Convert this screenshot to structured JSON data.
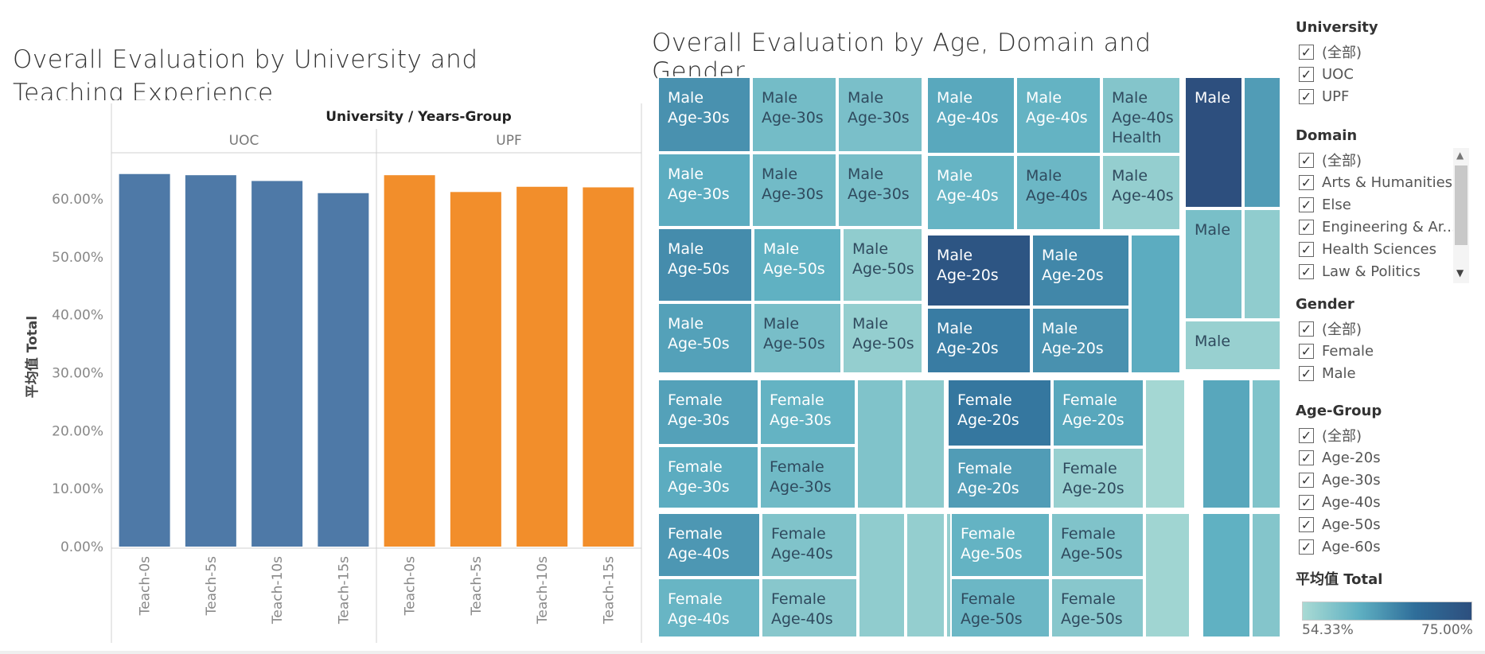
{
  "titles": {
    "left": "Overall Evaluation by University and Teaching Experience",
    "right": "Overall Evaluation by Age, Domain and Gender"
  },
  "chart_data": [
    {
      "type": "bar",
      "title": "Overall Evaluation by University and Teaching Experience",
      "column_header_title": "University / Years-Group",
      "facets": [
        "UOC",
        "UPF"
      ],
      "categories": [
        "Teach-0s",
        "Teach-5s",
        "Teach-10s",
        "Teach-15s"
      ],
      "series": [
        {
          "name": "UOC",
          "values": [
            64.3,
            64.1,
            63.1,
            61.0
          ],
          "color": "#4e79a7"
        },
        {
          "name": "UPF",
          "values": [
            64.1,
            61.2,
            62.1,
            62.0
          ],
          "color": "#f28e2b"
        }
      ],
      "ylabel": "平均值 Total",
      "yticks": [
        "0.00%",
        "10.00%",
        "20.00%",
        "30.00%",
        "40.00%",
        "50.00%",
        "60.00%"
      ],
      "ylim": [
        0,
        65.5
      ],
      "grid": false
    },
    {
      "type": "heatmap",
      "title": "Overall Evaluation by Age, Domain and Gender",
      "cells": [
        {
          "t1": "Male",
          "t2": "Age-30s",
          "t3": "",
          "v": 66.5
        },
        {
          "t1": "Male",
          "t2": "Age-30s",
          "t3": "",
          "v": 61.0
        },
        {
          "t1": "Male",
          "t2": "Age-30s",
          "t3": "",
          "v": 60.2
        },
        {
          "t1": "Male",
          "t2": "Age-30s",
          "t3": "",
          "v": 64.0
        },
        {
          "t1": "Male",
          "t2": "Age-30s",
          "t3": "",
          "v": 61.2
        },
        {
          "t1": "Male",
          "t2": "Age-30s",
          "t3": "",
          "v": 60.5
        },
        {
          "t1": "Male",
          "t2": "Age-40s",
          "t3": "",
          "v": 64.4
        },
        {
          "t1": "Male",
          "t2": "Age-40s",
          "t3": "",
          "v": 63.0
        },
        {
          "t1": "Male",
          "t2": "Age-40s",
          "t3": "Health",
          "v": 59.0
        },
        {
          "t1": "Male",
          "t2": "Age-40s",
          "t3": "",
          "v": 62.8
        },
        {
          "t1": "Male",
          "t2": "Age-40s",
          "t3": "",
          "v": 62.0
        },
        {
          "t1": "Male",
          "t2": "Age-40s",
          "t3": "",
          "v": 57.0
        },
        {
          "t1": "Male",
          "t2": "",
          "t3": "",
          "v": 75.0
        },
        {
          "t1": "",
          "t2": "",
          "t3": "",
          "v": 65.5
        },
        {
          "t1": "Male",
          "t2": "",
          "t3": "",
          "v": 60.4
        },
        {
          "t1": "",
          "t2": "",
          "t3": "",
          "v": 57.5
        },
        {
          "t1": "Male",
          "t2": "",
          "t3": "",
          "v": 56.5
        },
        {
          "t1": "Male",
          "t2": "Age-50s",
          "t3": "",
          "v": 67.0
        },
        {
          "t1": "Male",
          "t2": "Age-50s",
          "t3": "",
          "v": 63.5
        },
        {
          "t1": "Male",
          "t2": "Age-50s",
          "t3": "",
          "v": 57.5
        },
        {
          "t1": "Male",
          "t2": "Age-50s",
          "t3": "",
          "v": 65.0
        },
        {
          "t1": "Male",
          "t2": "Age-50s",
          "t3": "",
          "v": 60.5
        },
        {
          "t1": "Male",
          "t2": "Age-50s",
          "t3": "",
          "v": 57.0
        },
        {
          "t1": "Male",
          "t2": "Age-20s",
          "t3": "",
          "v": 74.0
        },
        {
          "t1": "Male",
          "t2": "Age-20s",
          "t3": "",
          "v": 67.5
        },
        {
          "t1": "",
          "t2": "",
          "t3": "",
          "v": 64.0
        },
        {
          "t1": "Male",
          "t2": "Age-20s",
          "t3": "",
          "v": 68.5
        },
        {
          "t1": "Male",
          "t2": "Age-20s",
          "t3": "",
          "v": 66.5
        },
        {
          "t1": "Female",
          "t2": "Age-30s",
          "t3": "",
          "v": 65.0
        },
        {
          "t1": "Female",
          "t2": "Age-30s",
          "t3": "",
          "v": 63.0
        },
        {
          "t1": "",
          "t2": "",
          "t3": "",
          "v": 59.5
        },
        {
          "t1": "",
          "t2": "",
          "t3": "",
          "v": 57.8
        },
        {
          "t1": "Female",
          "t2": "Age-30s",
          "t3": "",
          "v": 64.0
        },
        {
          "t1": "Female",
          "t2": "Age-30s",
          "t3": "",
          "v": 61.5
        },
        {
          "t1": "Female",
          "t2": "Age-20s",
          "t3": "",
          "v": 69.0
        },
        {
          "t1": "Female",
          "t2": "Age-20s",
          "t3": "",
          "v": 64.5
        },
        {
          "t1": "",
          "t2": "",
          "t3": "",
          "v": 55.0
        },
        {
          "t1": "Female",
          "t2": "Age-20s",
          "t3": "",
          "v": 65.5
        },
        {
          "t1": "Female",
          "t2": "Age-20s",
          "t3": "",
          "v": 56.5
        },
        {
          "t1": "",
          "t2": "",
          "t3": "",
          "v": 64.5
        },
        {
          "t1": "",
          "t2": "",
          "t3": "",
          "v": 59.5
        },
        {
          "t1": "Female",
          "t2": "Age-40s",
          "t3": "",
          "v": 66.0
        },
        {
          "t1": "Female",
          "t2": "Age-40s",
          "t3": "",
          "v": 59.5
        },
        {
          "t1": "",
          "t2": "",
          "t3": "",
          "v": 57.5
        },
        {
          "t1": "",
          "t2": "",
          "t3": "",
          "v": 57.0
        },
        {
          "t1": "Female",
          "t2": "Age-40s",
          "t3": "",
          "v": 62.5
        },
        {
          "t1": "Female",
          "t2": "Age-40s",
          "t3": "",
          "v": 58.5
        },
        {
          "t1": "Female",
          "t2": "Age-50s",
          "t3": "",
          "v": 63.0
        },
        {
          "t1": "Female",
          "t2": "Age-50s",
          "t3": "",
          "v": 59.5
        },
        {
          "t1": "",
          "t2": "",
          "t3": "",
          "v": 55.5
        },
        {
          "t1": "Female",
          "t2": "Age-50s",
          "t3": "",
          "v": 62.0
        },
        {
          "t1": "Female",
          "t2": "Age-50s",
          "t3": "",
          "v": 58.5
        },
        {
          "t1": "",
          "t2": "",
          "t3": "",
          "v": 63.5
        },
        {
          "t1": "",
          "t2": "",
          "t3": "",
          "v": 59.0
        }
      ],
      "color_scale": {
        "min": 54.33,
        "max": 75.0,
        "min_label": "54.33%",
        "max_label": "75.00%"
      }
    }
  ],
  "filters": {
    "university": {
      "title": "University",
      "items": [
        "(全部)",
        "UOC",
        "UPF"
      ]
    },
    "domain": {
      "title": "Domain",
      "items": [
        "(全部)",
        "Arts & Humanities",
        "Else",
        "Engineering & Ar...",
        "Health Sciences",
        "Law & Politics"
      ]
    },
    "gender": {
      "title": "Gender",
      "items": [
        "(全部)",
        "Female",
        "Male"
      ]
    },
    "age_group": {
      "title": "Age-Group",
      "items": [
        "(全部)",
        "Age-20s",
        "Age-30s",
        "Age-40s",
        "Age-50s",
        "Age-60s"
      ]
    }
  },
  "color_legend": {
    "title": "平均值 Total",
    "min_label": "54.33%",
    "max_label": "75.00%"
  }
}
